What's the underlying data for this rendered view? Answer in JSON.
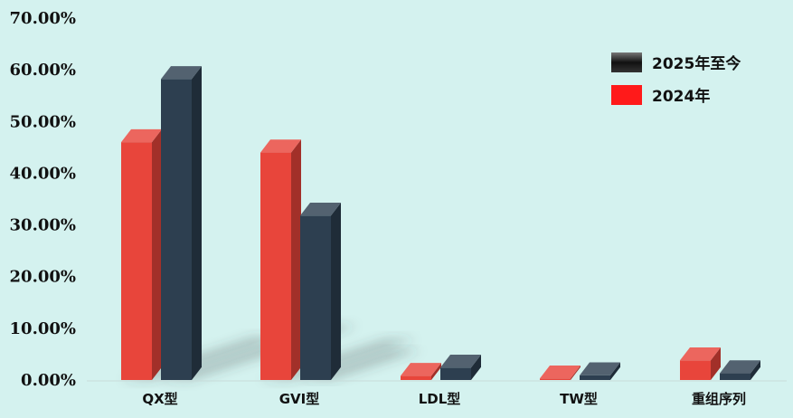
{
  "chart_data": {
    "type": "bar",
    "categories": [
      "QX型",
      "GVI型",
      "LDL型",
      "TW型",
      "重组序列"
    ],
    "series": [
      {
        "name": "2024年",
        "values": [
          46.0,
          44.0,
          0.8,
          0.3,
          3.8
        ],
        "color": "#e8453b"
      },
      {
        "name": "2025年至今",
        "values": [
          58.2,
          31.8,
          2.4,
          0.9,
          1.3
        ],
        "color": "#2d3f50"
      }
    ],
    "legend_order": [
      "2025年至今",
      "2024年"
    ],
    "ylim": [
      0,
      70
    ],
    "yticks": [
      "0.00%",
      "10.00%",
      "20.00%",
      "30.00%",
      "40.00%",
      "50.00%",
      "60.00%",
      "70.00%"
    ],
    "xlabel": "",
    "ylabel": "",
    "legend_position": "top-right",
    "grid": false
  }
}
